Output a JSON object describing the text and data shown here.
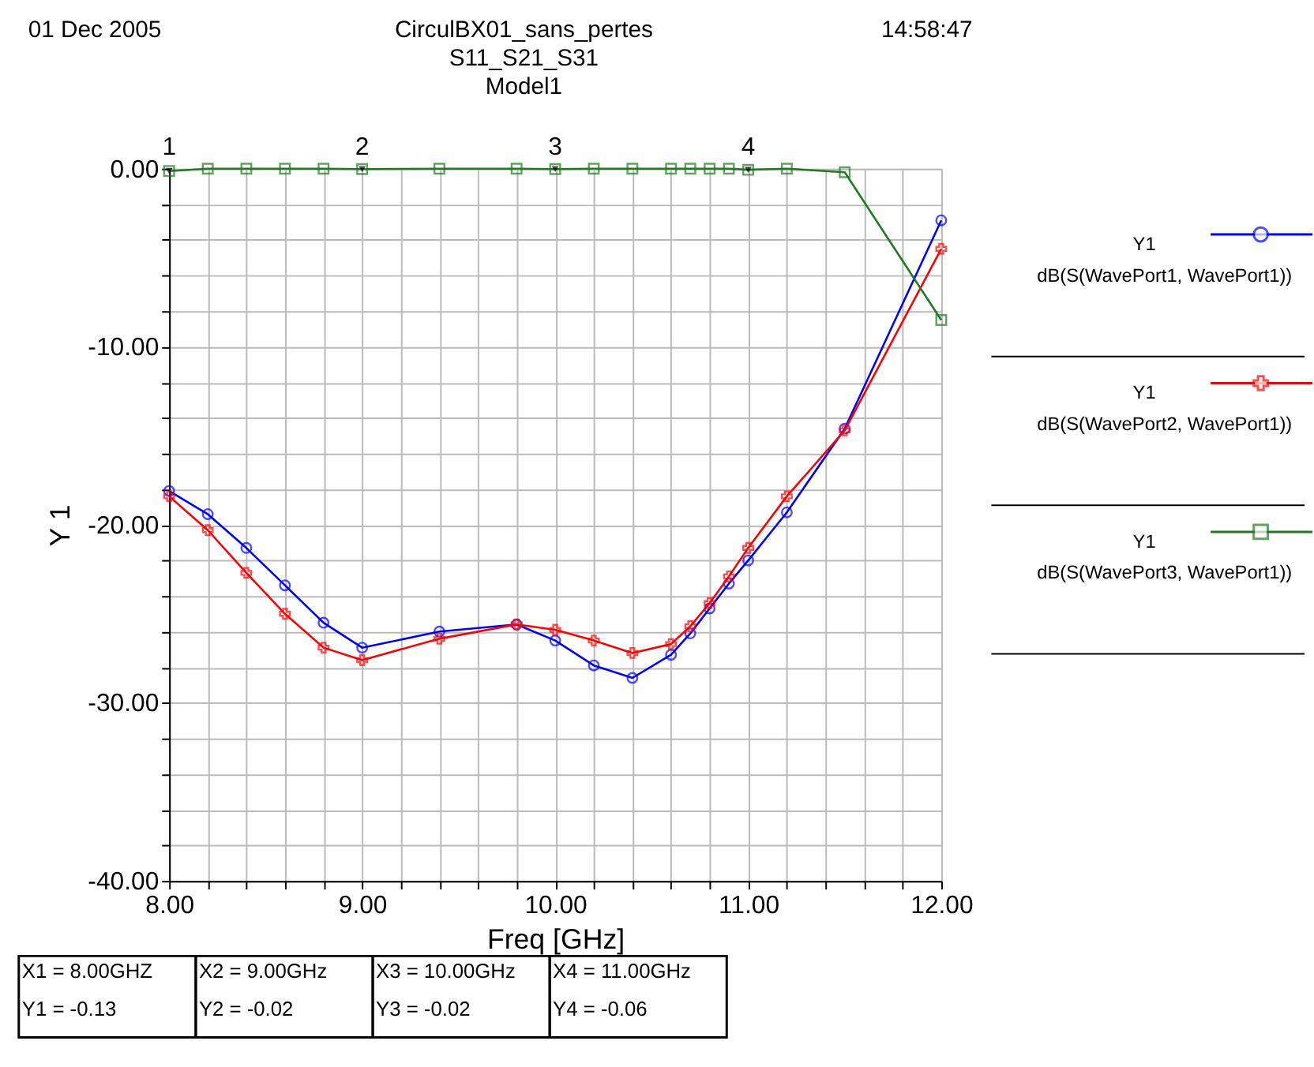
{
  "chart_data": {
    "type": "line",
    "title": "CirculBX01_sans_pertes",
    "subtitle": "S11_S21_S31\nModel1",
    "xlabel": "Freq [GHz]",
    "ylabel": "Y 1",
    "x": [
      8.0,
      8.2,
      8.4,
      8.6,
      8.8,
      9.0,
      9.4,
      9.8,
      10.0,
      10.2,
      10.4,
      10.6,
      10.7,
      10.8,
      10.9,
      11.0,
      11.2,
      11.5,
      12.0
    ],
    "series": [
      {
        "name": "dB(S(WavePort1, WavePort1))",
        "color": "#0000ff",
        "marker": "circle",
        "values": [
          -18.1,
          -19.4,
          -21.3,
          -23.4,
          -25.5,
          -26.9,
          -26.0,
          -25.6,
          -26.5,
          -27.9,
          -28.6,
          -27.3,
          -26.1,
          -24.7,
          -23.3,
          -22.0,
          -19.3,
          -14.6,
          -2.9
        ]
      },
      {
        "name": "dB(S(WavePort2, WavePort1))",
        "color": "#ff0000",
        "marker": "cross",
        "values": [
          -18.4,
          -20.3,
          -22.7,
          -25.0,
          -26.9,
          -27.6,
          -26.4,
          -25.6,
          -25.9,
          -26.5,
          -27.2,
          -26.7,
          -25.7,
          -24.4,
          -22.9,
          -21.3,
          -18.4,
          -14.7,
          -4.5
        ]
      },
      {
        "name": "dB(S(WavePort3, WavePort1))",
        "color": "#217a21",
        "marker": "square",
        "values": [
          -0.13,
          0,
          0,
          0,
          0,
          -0.02,
          0,
          0,
          -0.02,
          0,
          0,
          0,
          0,
          0,
          0,
          -0.06,
          0,
          -0.2,
          -8.5
        ]
      }
    ],
    "xlim": [
      8,
      12
    ],
    "ylim": [
      -40,
      0
    ],
    "xticks": [
      {
        "value": 8,
        "label": "8.00"
      },
      {
        "value": 8.2,
        "label": null
      },
      {
        "value": 8.4,
        "label": null
      },
      {
        "value": 8.6,
        "label": null
      },
      {
        "value": 8.8,
        "label": null
      },
      {
        "value": 9,
        "label": "9.00"
      },
      {
        "value": 9.2,
        "label": null
      },
      {
        "value": 9.4,
        "label": null
      },
      {
        "value": 9.6,
        "label": null
      },
      {
        "value": 9.8,
        "label": null
      },
      {
        "value": 10,
        "label": "10.00"
      },
      {
        "value": 10.2,
        "label": null
      },
      {
        "value": 10.4,
        "label": null
      },
      {
        "value": 10.6,
        "label": null
      },
      {
        "value": 10.8,
        "label": null
      },
      {
        "value": 11,
        "label": "11.00"
      },
      {
        "value": 11.2,
        "label": null
      },
      {
        "value": 11.4,
        "label": null
      },
      {
        "value": 11.6,
        "label": null
      },
      {
        "value": 11.8,
        "label": null
      },
      {
        "value": 12,
        "label": "12.00"
      }
    ],
    "yticks": [
      {
        "value": -40,
        "label": "-40.00"
      },
      {
        "value": -38,
        "label": null
      },
      {
        "value": -36,
        "label": null
      },
      {
        "value": -34,
        "label": null
      },
      {
        "value": -32,
        "label": null
      },
      {
        "value": -30,
        "label": "-30.00"
      },
      {
        "value": -28,
        "label": null
      },
      {
        "value": -26,
        "label": null
      },
      {
        "value": -24,
        "label": null
      },
      {
        "value": -22,
        "label": null
      },
      {
        "value": -20,
        "label": "-20.00"
      },
      {
        "value": -18,
        "label": null
      },
      {
        "value": -16,
        "label": null
      },
      {
        "value": -14,
        "label": null
      },
      {
        "value": -12,
        "label": null
      },
      {
        "value": -10,
        "label": "-10.00"
      },
      {
        "value": -8,
        "label": null
      },
      {
        "value": -6,
        "label": null
      },
      {
        "value": -4,
        "label": null
      },
      {
        "value": -2,
        "label": null
      },
      {
        "value": 0,
        "label": "0.00"
      }
    ],
    "grid": true,
    "legend": "right",
    "line_style": "solid",
    "annotations": [
      "01 Dec 2005",
      "14:58:47",
      {
        "text": "1",
        "x": 8.0,
        "y": -0.13
      },
      {
        "text": "2",
        "x": 9.0,
        "y": -0.02
      },
      {
        "text": "3",
        "x": 10.0,
        "y": -0.02
      },
      {
        "text": "4",
        "x": 11.0,
        "y": -0.06
      },
      "X1 = 8.00GHZ",
      "Y1 = -0.13",
      "X2 = 9.00GHz",
      "Y2 = -0.02",
      "X3 = 10.00GHz",
      "Y3 = -0.02",
      "X4 = 11.00GHz",
      "Y4 = -0.06",
      "Y1",
      "Y1",
      "Y1"
    ]
  }
}
